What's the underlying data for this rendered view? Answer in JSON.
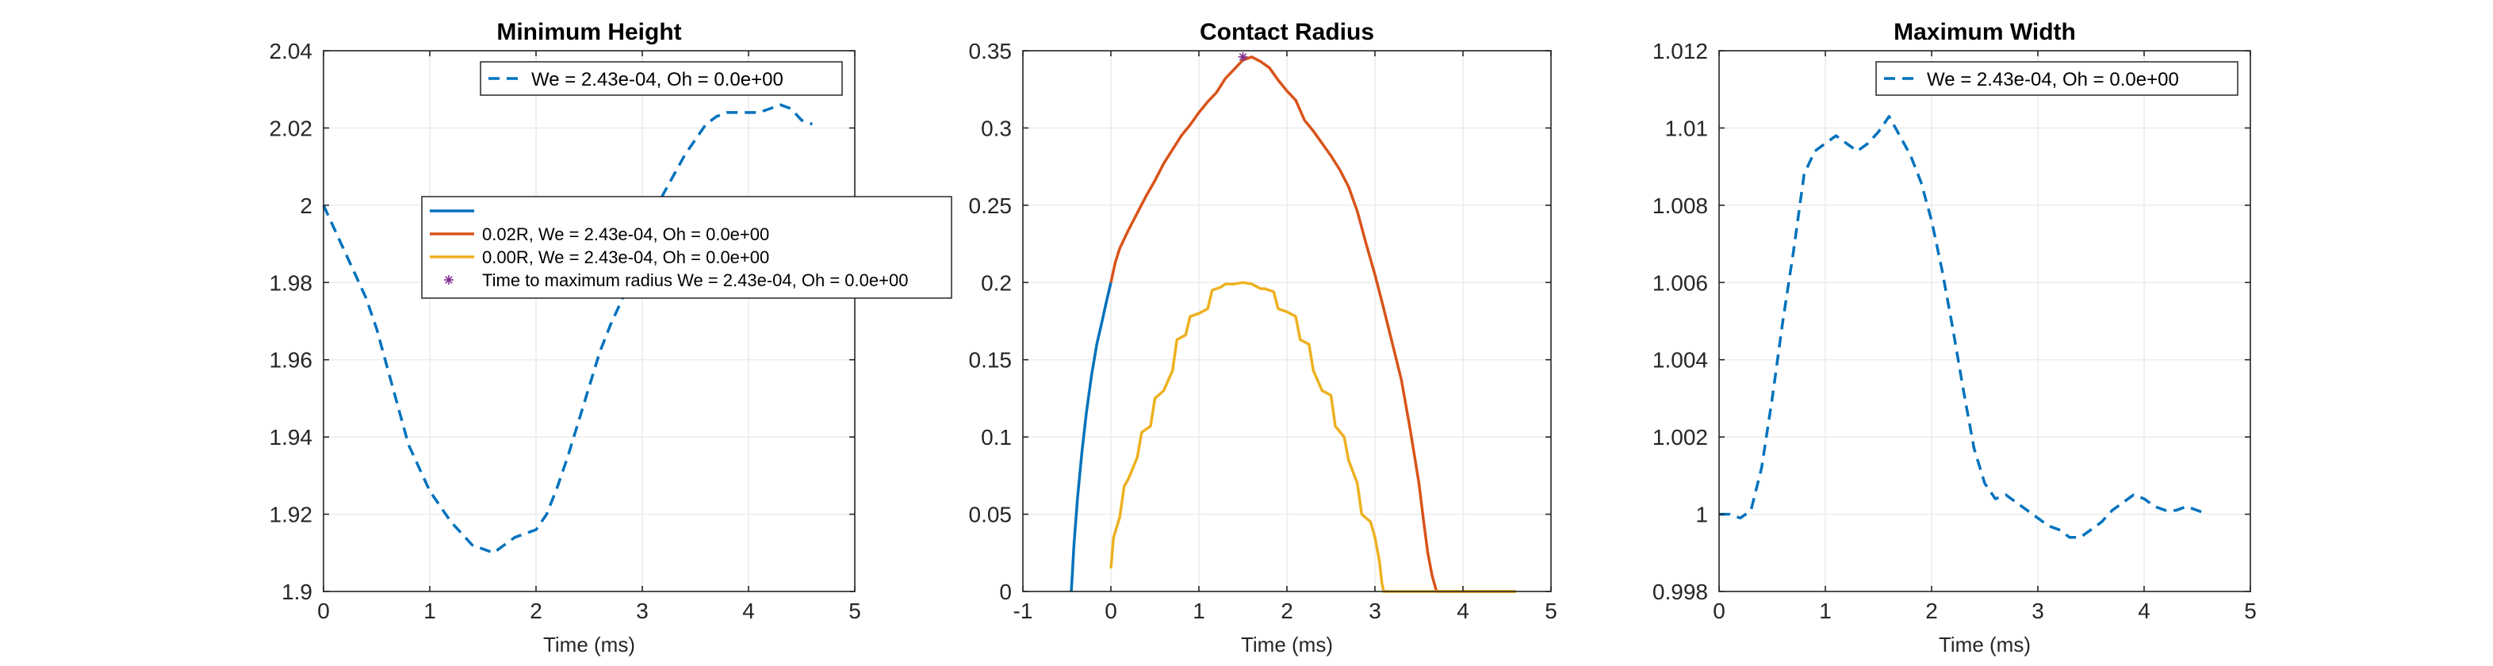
{
  "chart_data": [
    {
      "type": "line",
      "title": "Minimum Height",
      "xlabel": "Time (ms)",
      "ylabel": "",
      "xlim": [
        0,
        5
      ],
      "ylim": [
        1.9,
        2.04
      ],
      "xticks": [
        "0",
        "1",
        "2",
        "3",
        "4",
        "5"
      ],
      "yticks": [
        "1.9",
        "1.92",
        "1.94",
        "1.96",
        "1.98",
        "2",
        "2.02",
        "2.04"
      ],
      "grid": true,
      "legend_placement": "top-right",
      "series": [
        {
          "name": "We = 2.43e-04, Oh = 0.0e+00",
          "style": "dashed",
          "color": "#0072BD",
          "x": [
            0,
            0.1,
            0.2,
            0.3,
            0.4,
            0.5,
            0.6,
            0.7,
            0.8,
            0.9,
            1.0,
            1.1,
            1.2,
            1.3,
            1.4,
            1.5,
            1.6,
            1.7,
            1.8,
            1.9,
            2.0,
            2.1,
            2.2,
            2.3,
            2.4,
            2.5,
            2.6,
            2.7,
            2.8,
            2.9,
            3.0,
            3.1,
            3.2,
            3.3,
            3.4,
            3.5,
            3.6,
            3.7,
            3.8,
            3.9,
            4.0,
            4.1,
            4.2,
            4.3,
            4.4,
            4.5,
            4.6
          ],
          "y": [
            2.0,
            1.994,
            1.988,
            1.982,
            1.976,
            1.968,
            1.958,
            1.948,
            1.938,
            1.932,
            1.926,
            1.922,
            1.918,
            1.915,
            1.912,
            1.911,
            1.91,
            1.912,
            1.914,
            1.915,
            1.916,
            1.92,
            1.927,
            1.935,
            1.944,
            1.953,
            1.962,
            1.969,
            1.975,
            1.982,
            1.99,
            1.997,
            2.003,
            2.008,
            2.013,
            2.017,
            2.021,
            2.023,
            2.024,
            2.024,
            2.024,
            2.024,
            2.025,
            2.026,
            2.025,
            2.022,
            2.021
          ]
        }
      ]
    },
    {
      "type": "line",
      "title": "Contact Radius",
      "xlabel": "Time (ms)",
      "ylabel": "",
      "xlim": [
        -1,
        5
      ],
      "ylim": [
        0,
        0.35
      ],
      "xticks": [
        "-1",
        "0",
        "1",
        "2",
        "3",
        "4",
        "5"
      ],
      "yticks": [
        "0",
        "0.05",
        "0.1",
        "0.15",
        "0.2",
        "0.25",
        "0.3",
        "0.35"
      ],
      "grid": true,
      "legend_placement": "upper-left",
      "series": [
        {
          "name": "",
          "style": "solid",
          "color": "#0072BD",
          "x": [
            -0.45,
            -0.44,
            -0.42,
            -0.38,
            -0.33,
            -0.28,
            -0.22,
            -0.16,
            -0.1,
            -0.05,
            0.0
          ],
          "y": [
            0.0,
            0.01,
            0.03,
            0.06,
            0.09,
            0.115,
            0.14,
            0.16,
            0.175,
            0.188,
            0.2
          ]
        },
        {
          "name": "0.02R, We = 2.43e-04, Oh = 0.0e+00",
          "style": "solid",
          "color": "#D95319",
          "x": [
            0.0,
            0.05,
            0.1,
            0.2,
            0.3,
            0.4,
            0.5,
            0.6,
            0.7,
            0.8,
            0.9,
            1.0,
            1.1,
            1.2,
            1.3,
            1.4,
            1.5,
            1.6,
            1.7,
            1.8,
            1.9,
            2.0,
            2.1,
            2.2,
            2.3,
            2.4,
            2.5,
            2.6,
            2.7,
            2.8,
            2.9,
            3.0,
            3.1,
            3.2,
            3.3,
            3.4,
            3.5,
            3.55,
            3.6,
            3.65,
            3.7,
            4.0,
            4.3,
            4.6
          ],
          "y": [
            0.2,
            0.213,
            0.222,
            0.234,
            0.245,
            0.256,
            0.266,
            0.277,
            0.286,
            0.295,
            0.302,
            0.31,
            0.317,
            0.323,
            0.332,
            0.338,
            0.344,
            0.346,
            0.343,
            0.339,
            0.331,
            0.324,
            0.318,
            0.305,
            0.298,
            0.29,
            0.282,
            0.273,
            0.262,
            0.246,
            0.225,
            0.205,
            0.183,
            0.16,
            0.137,
            0.105,
            0.07,
            0.047,
            0.025,
            0.01,
            0.0,
            0.0,
            0.0,
            0.0
          ]
        },
        {
          "name": "0.00R, We = 2.43e-04, Oh = 0.0e+00",
          "style": "solid",
          "color": "#EDB120",
          "x": [
            0.0,
            0.03,
            0.1,
            0.15,
            0.2,
            0.3,
            0.35,
            0.45,
            0.5,
            0.6,
            0.7,
            0.75,
            0.85,
            0.9,
            1.0,
            1.1,
            1.15,
            1.25,
            1.3,
            1.4,
            1.5,
            1.6,
            1.7,
            1.75,
            1.85,
            1.9,
            2.0,
            2.1,
            2.15,
            2.25,
            2.3,
            2.4,
            2.5,
            2.55,
            2.65,
            2.7,
            2.8,
            2.85,
            2.95,
            3.0,
            3.05,
            3.08,
            3.1,
            3.15,
            3.5,
            4.0,
            4.6
          ],
          "y": [
            0.015,
            0.035,
            0.048,
            0.068,
            0.073,
            0.087,
            0.103,
            0.107,
            0.125,
            0.13,
            0.143,
            0.163,
            0.166,
            0.178,
            0.18,
            0.183,
            0.195,
            0.197,
            0.199,
            0.199,
            0.2,
            0.199,
            0.196,
            0.196,
            0.194,
            0.183,
            0.181,
            0.178,
            0.163,
            0.16,
            0.143,
            0.13,
            0.127,
            0.107,
            0.1,
            0.085,
            0.07,
            0.05,
            0.045,
            0.035,
            0.02,
            0.005,
            0.0,
            0.0,
            0.0,
            0.0,
            0.0
          ]
        },
        {
          "name": "Time to maximum radius We = 2.43e-04, Oh = 0.0e+00",
          "style": "marker",
          "marker": "asterisk",
          "color": "#7E2F8E",
          "x": [
            1.5
          ],
          "y": [
            0.346
          ]
        }
      ]
    },
    {
      "type": "line",
      "title": "Maximum Width",
      "xlabel": "Time (ms)",
      "ylabel": "",
      "xlim": [
        0,
        5
      ],
      "ylim": [
        0.998,
        1.012
      ],
      "xticks": [
        "0",
        "1",
        "2",
        "3",
        "4",
        "5"
      ],
      "yticks": [
        "0.998",
        "1",
        "1.002",
        "1.004",
        "1.006",
        "1.008",
        "1.01",
        "1.012"
      ],
      "grid": true,
      "legend_placement": "top-right",
      "series": [
        {
          "name": "We = 2.43e-04, Oh = 0.0e+00",
          "style": "dashed",
          "color": "#0072BD",
          "x": [
            0,
            0.1,
            0.2,
            0.3,
            0.4,
            0.5,
            0.6,
            0.7,
            0.8,
            0.9,
            1.0,
            1.1,
            1.2,
            1.3,
            1.4,
            1.5,
            1.6,
            1.7,
            1.8,
            1.9,
            2.0,
            2.1,
            2.2,
            2.3,
            2.4,
            2.5,
            2.6,
            2.7,
            2.8,
            2.9,
            3.0,
            3.1,
            3.2,
            3.3,
            3.4,
            3.5,
            3.6,
            3.7,
            3.8,
            3.9,
            4.0,
            4.1,
            4.2,
            4.3,
            4.4,
            4.5,
            4.6
          ],
          "y": [
            1.0,
            1.0,
            0.9999,
            1.0001,
            1.0012,
            1.003,
            1.005,
            1.0068,
            1.0088,
            1.0094,
            1.0096,
            1.0098,
            1.0096,
            1.0094,
            1.0096,
            1.0099,
            1.0103,
            1.0098,
            1.0093,
            1.0086,
            1.0076,
            1.0063,
            1.0048,
            1.0032,
            1.0017,
            1.0008,
            1.0004,
            1.0005,
            1.0003,
            1.0001,
            0.9999,
            0.9997,
            0.9996,
            0.9994,
            0.9994,
            0.9996,
            0.9998,
            1.0001,
            1.0003,
            1.0005,
            1.0004,
            1.0002,
            1.0001,
            1.0001,
            1.0002,
            1.0001,
            1.0
          ]
        }
      ]
    }
  ]
}
